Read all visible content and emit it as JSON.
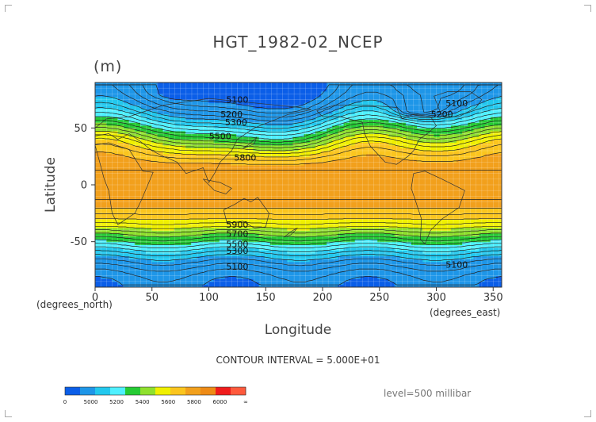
{
  "chart_data": {
    "type": "heatmap",
    "title": "HGT_1982-02_NCEP",
    "unit_label": "(m)",
    "xlabel": "Longitude",
    "ylabel": "Latitude",
    "x_unit_label": "(degrees_east)",
    "y_unit_label": "(degrees_north)",
    "xlim": [
      0,
      357.5
    ],
    "ylim": [
      -90,
      90
    ],
    "xticks": [
      0,
      50,
      100,
      150,
      200,
      250,
      300,
      350
    ],
    "yticks": [
      50,
      0,
      -50
    ],
    "contour_interval_text": "CONTOUR INTERVAL = 5.000E+01",
    "level_text": "level=500 millibar",
    "colorbar": {
      "tick_labels": [
        "0",
        "5000",
        "5200",
        "5400",
        "5600",
        "5800",
        "6000",
        "∞"
      ],
      "colors": [
        "#0b5ee8",
        "#1e96e8",
        "#22c8ee",
        "#4ff0ff",
        "#25cb34",
        "#8fe02d",
        "#f0f000",
        "#fbc51e",
        "#f2a01c",
        "#ee8b16",
        "#f01c1c",
        "#ff5a3c"
      ]
    },
    "contour_labels": [
      {
        "text": "5100",
        "lon": 125,
        "lat": 75
      },
      {
        "text": "5100",
        "lon": 318,
        "lat": 72
      },
      {
        "text": "5200",
        "lon": 120,
        "lat": 62
      },
      {
        "text": "5300",
        "lon": 124,
        "lat": 55
      },
      {
        "text": "5500",
        "lon": 110,
        "lat": 43
      },
      {
        "text": "5800",
        "lon": 132,
        "lat": 24
      },
      {
        "text": "5200",
        "lon": 305,
        "lat": 62
      },
      {
        "text": "5900",
        "lon": 125,
        "lat": -35
      },
      {
        "text": "5700",
        "lon": 125,
        "lat": -43
      },
      {
        "text": "5500",
        "lon": 125,
        "lat": -52
      },
      {
        "text": "5300",
        "lon": 125,
        "lat": -58
      },
      {
        "text": "5100",
        "lon": 125,
        "lat": -72
      },
      {
        "text": "5100",
        "lon": 318,
        "lat": -70
      }
    ],
    "grid": true
  }
}
